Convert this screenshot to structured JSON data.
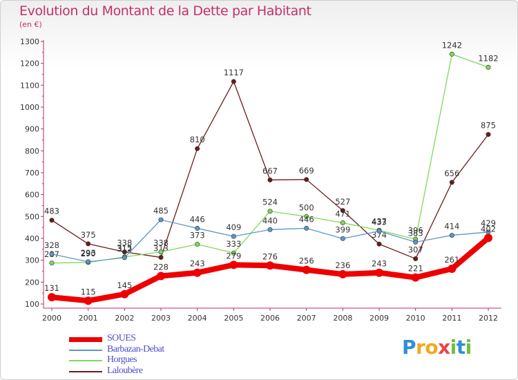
{
  "header": {
    "title": "Evolution du Montant de la Dette par Habitant",
    "unit": "(en €)"
  },
  "logo": {
    "text": "Proxiti",
    "letters": [
      "P",
      "r",
      "o",
      "x",
      "i",
      "t",
      "i"
    ],
    "colors": [
      "#2f8fd6",
      "#f0a91f",
      "#f0a91f",
      "#e8454a",
      "#6fbf3a",
      "#2f8fd6",
      "#6fbf3a"
    ]
  },
  "chart_data": {
    "type": "line",
    "title": "Evolution du Montant de la Dette par Habitant",
    "subtitle": "(en €)",
    "xlabel": "",
    "ylabel": "",
    "x": [
      2000,
      2001,
      2002,
      2003,
      2004,
      2005,
      2006,
      2007,
      2008,
      2009,
      2010,
      2011,
      2012
    ],
    "ylim": [
      100,
      1300
    ],
    "yticks": [
      100,
      200,
      300,
      400,
      500,
      600,
      700,
      800,
      900,
      1000,
      1100,
      1200,
      1300
    ],
    "grid": false,
    "legend_position": "bottom-left",
    "series": [
      {
        "name": "Laloubère",
        "color": "#6b1a1a",
        "width": 1.3,
        "values": [
          483,
          375,
          338,
          313,
          810,
          1117,
          667,
          669,
          527,
          374,
          307,
          656,
          875
        ],
        "labels": true
      },
      {
        "name": "Horgues",
        "color": "#7ed957",
        "width": 1.3,
        "values": [
          287,
          290,
          315,
          338,
          373,
          333,
          524,
          500,
          471,
          437,
          396,
          1242,
          1182
        ],
        "labels": true
      },
      {
        "name": "Barbazan-Debat",
        "color": "#5b97c9",
        "width": 1.3,
        "values": [
          328,
          293,
          312,
          485,
          446,
          409,
          440,
          446,
          399,
          433,
          383,
          414,
          429
        ],
        "labels": true
      },
      {
        "name": "SOUES",
        "color": "#ee0000",
        "width": 8,
        "values": [
          131,
          115,
          145,
          228,
          243,
          279,
          276,
          256,
          236,
          243,
          221,
          261,
          402
        ],
        "labels": true
      }
    ],
    "legend_order": [
      "SOUES",
      "Barbazan-Debat",
      "Horgues",
      "Laloubère"
    ]
  }
}
